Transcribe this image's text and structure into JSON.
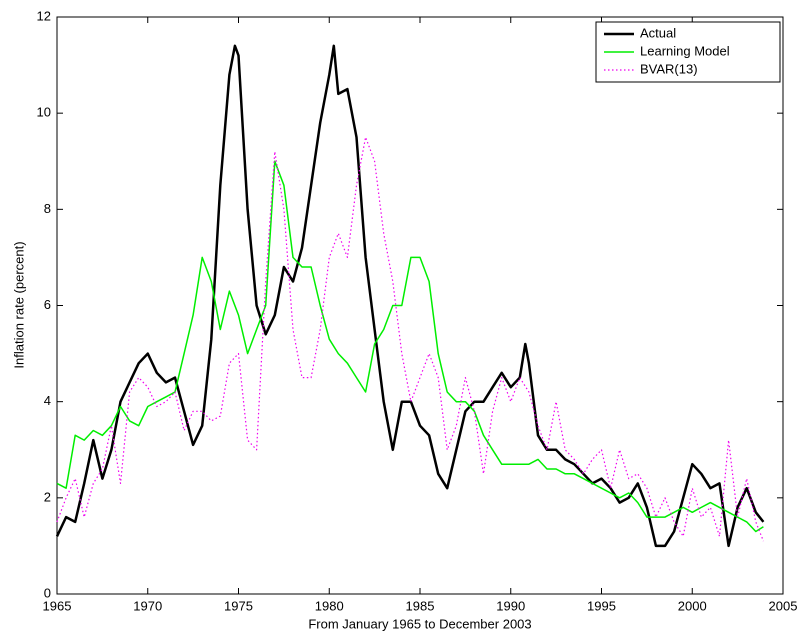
{
  "chart_data": {
    "type": "line",
    "x_label": "From January 1965 to December 2003",
    "y_label": "Inflation rate (percent)",
    "xlim": [
      1965,
      2005
    ],
    "xticks": [
      1965,
      1970,
      1975,
      1980,
      1985,
      1990,
      1995,
      2000,
      2005
    ],
    "ylim": [
      0,
      12
    ],
    "yticks": [
      0,
      2,
      4,
      6,
      8,
      10,
      12
    ],
    "grid": false,
    "legend_position": "upper-right",
    "series": [
      {
        "name": "Actual",
        "color": "#000000",
        "style": "solid",
        "width": 2.5,
        "x": [
          1965,
          1965.5,
          1966,
          1966.5,
          1967,
          1967.5,
          1968,
          1968.5,
          1969,
          1969.5,
          1970,
          1970.5,
          1971,
          1971.5,
          1972,
          1972.5,
          1973,
          1973.5,
          1974,
          1974.5,
          1974.8,
          1975,
          1975.5,
          1976,
          1976.5,
          1977,
          1977.5,
          1978,
          1978.5,
          1979,
          1979.5,
          1980,
          1980.25,
          1980.5,
          1981,
          1981.5,
          1982,
          1982.5,
          1983,
          1983.5,
          1984,
          1984.5,
          1985,
          1985.5,
          1986,
          1986.5,
          1987,
          1987.5,
          1988,
          1988.5,
          1989,
          1989.5,
          1990,
          1990.5,
          1990.8,
          1991,
          1991.5,
          1992,
          1992.5,
          1993,
          1993.5,
          1994,
          1994.5,
          1995,
          1995.5,
          1996,
          1996.5,
          1997,
          1997.5,
          1998,
          1998.5,
          1999,
          1999.5,
          2000,
          2000.5,
          2001,
          2001.5,
          2002,
          2002.5,
          2003,
          2003.5,
          2003.92
        ],
        "values": [
          1.2,
          1.6,
          1.5,
          2.3,
          3.2,
          2.4,
          3.0,
          4.0,
          4.4,
          4.8,
          5.0,
          4.6,
          4.4,
          4.5,
          3.8,
          3.1,
          3.5,
          5.3,
          8.5,
          10.8,
          11.4,
          11.2,
          8.0,
          6.0,
          5.4,
          5.8,
          6.8,
          6.5,
          7.2,
          8.5,
          9.8,
          10.8,
          11.4,
          10.4,
          10.5,
          9.5,
          7.0,
          5.5,
          4.0,
          3.0,
          4.0,
          4.0,
          3.5,
          3.3,
          2.5,
          2.2,
          3.0,
          3.8,
          4.0,
          4.0,
          4.3,
          4.6,
          4.3,
          4.5,
          5.2,
          4.8,
          3.3,
          3.0,
          3.0,
          2.8,
          2.7,
          2.5,
          2.3,
          2.4,
          2.2,
          1.9,
          2.0,
          2.3,
          1.8,
          1.0,
          1.0,
          1.3,
          2.0,
          2.7,
          2.5,
          2.2,
          2.3,
          1.0,
          1.8,
          2.2,
          1.7,
          1.5
        ]
      },
      {
        "name": "Learning Model",
        "color": "#00ee00",
        "style": "solid",
        "width": 1.5,
        "x": [
          1965,
          1965.5,
          1966,
          1966.5,
          1967,
          1967.5,
          1968,
          1968.5,
          1969,
          1969.5,
          1970,
          1970.5,
          1971,
          1971.5,
          1972,
          1972.5,
          1973,
          1973.5,
          1974,
          1974.5,
          1975,
          1975.5,
          1976,
          1976.5,
          1977,
          1977.5,
          1978,
          1978.5,
          1979,
          1979.5,
          1980,
          1980.5,
          1981,
          1981.5,
          1982,
          1982.5,
          1983,
          1983.5,
          1984,
          1984.5,
          1985,
          1985.5,
          1986,
          1986.5,
          1987,
          1987.5,
          1988,
          1988.5,
          1989,
          1989.5,
          1990,
          1990.5,
          1991,
          1991.5,
          1992,
          1992.5,
          1993,
          1993.5,
          1994,
          1994.5,
          1995,
          1995.5,
          1996,
          1996.5,
          1997,
          1997.5,
          1998,
          1998.5,
          1999,
          1999.5,
          2000,
          2000.5,
          2001,
          2001.5,
          2002,
          2002.5,
          2003,
          2003.5,
          2003.92
        ],
        "values": [
          2.3,
          2.2,
          3.3,
          3.2,
          3.4,
          3.3,
          3.5,
          3.9,
          3.6,
          3.5,
          3.9,
          4.0,
          4.1,
          4.2,
          5.0,
          5.8,
          7.0,
          6.5,
          5.5,
          6.3,
          5.8,
          5.0,
          5.5,
          6.0,
          9.0,
          8.5,
          7.0,
          6.8,
          6.8,
          6.0,
          5.3,
          5.0,
          4.8,
          4.5,
          4.2,
          5.2,
          5.5,
          6.0,
          6.0,
          7.0,
          7.0,
          6.5,
          5.0,
          4.2,
          4.0,
          4.0,
          3.8,
          3.3,
          3.0,
          2.7,
          2.7,
          2.7,
          2.7,
          2.8,
          2.6,
          2.6,
          2.5,
          2.5,
          2.4,
          2.3,
          2.2,
          2.1,
          2.0,
          2.1,
          1.9,
          1.6,
          1.6,
          1.6,
          1.7,
          1.8,
          1.7,
          1.8,
          1.9,
          1.8,
          1.7,
          1.6,
          1.5,
          1.3,
          1.4
        ]
      },
      {
        "name": "BVAR(13)",
        "color": "#ee00ee",
        "style": "dotted",
        "width": 1.2,
        "x": [
          1965,
          1965.5,
          1966,
          1966.5,
          1967,
          1967.5,
          1968,
          1968.5,
          1969,
          1969.5,
          1970,
          1970.5,
          1971,
          1971.5,
          1972,
          1972.5,
          1973,
          1973.5,
          1974,
          1974.5,
          1975,
          1975.5,
          1976,
          1976.5,
          1977,
          1977.5,
          1978,
          1978.5,
          1979,
          1979.5,
          1980,
          1980.5,
          1981,
          1981.5,
          1982,
          1982.5,
          1983,
          1983.5,
          1984,
          1984.5,
          1985,
          1985.5,
          1986,
          1986.5,
          1987,
          1987.5,
          1988,
          1988.5,
          1989,
          1989.5,
          1990,
          1990.5,
          1991,
          1991.5,
          1992,
          1992.5,
          1993,
          1993.5,
          1994,
          1994.5,
          1995,
          1995.5,
          1996,
          1996.5,
          1997,
          1997.5,
          1998,
          1998.5,
          1999,
          1999.5,
          2000,
          2000.5,
          2001,
          2001.5,
          2002,
          2002.5,
          2003,
          2003.5,
          2003.92
        ],
        "values": [
          1.5,
          2.0,
          2.4,
          1.6,
          2.3,
          2.6,
          3.5,
          2.3,
          4.2,
          4.5,
          4.3,
          3.9,
          4.0,
          4.2,
          3.4,
          3.8,
          3.8,
          3.6,
          3.7,
          4.8,
          5.0,
          3.2,
          3.0,
          6.5,
          9.2,
          8.0,
          5.5,
          4.5,
          4.5,
          5.5,
          7.0,
          7.5,
          7.0,
          8.5,
          9.5,
          9.0,
          7.5,
          6.5,
          5.0,
          4.0,
          4.5,
          5.0,
          4.5,
          3.0,
          3.5,
          4.5,
          3.8,
          2.5,
          3.8,
          4.5,
          4.0,
          4.5,
          4.2,
          3.5,
          3.0,
          4.0,
          3.0,
          2.8,
          2.5,
          2.8,
          3.0,
          2.2,
          3.0,
          2.4,
          2.5,
          2.2,
          1.6,
          2.0,
          1.5,
          1.2,
          2.2,
          1.6,
          1.8,
          1.2,
          3.2,
          1.6,
          2.4,
          1.5,
          1.1
        ]
      }
    ]
  }
}
